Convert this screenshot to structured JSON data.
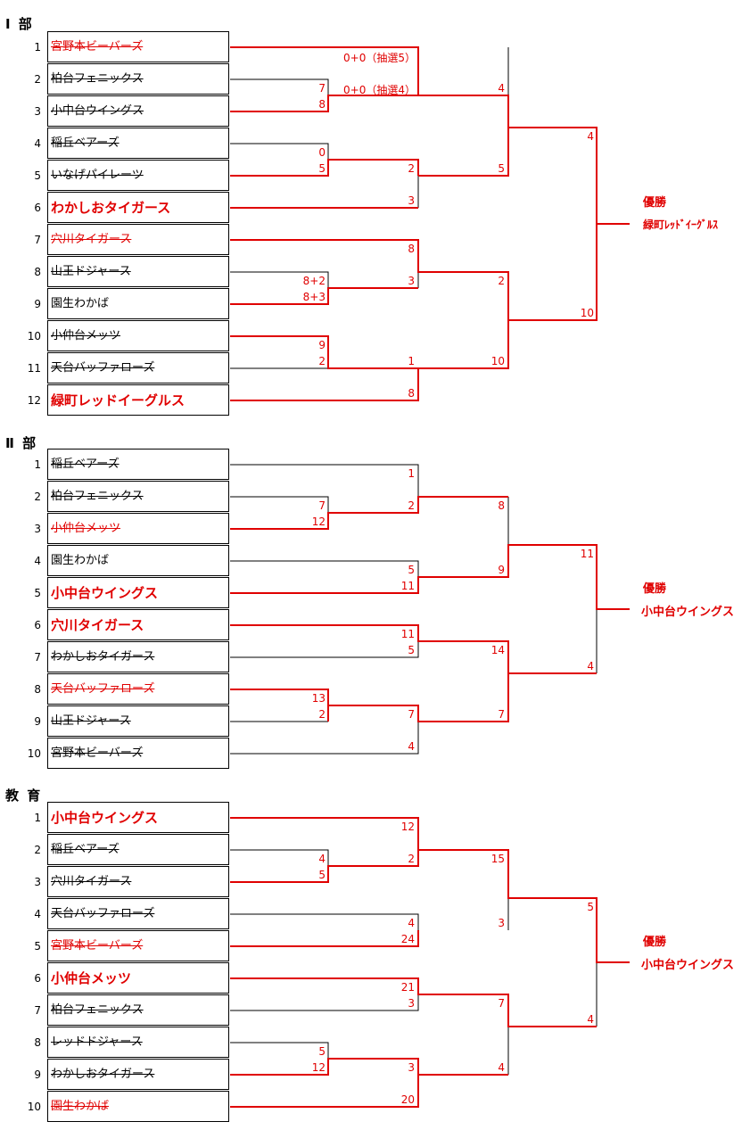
{
  "sections": [
    {
      "title": "Ⅰ 部",
      "teams": [
        {
          "seed": "1",
          "name": "宮野本ビーバーズ",
          "style": "red-lost"
        },
        {
          "seed": "2",
          "name": "柏台フェニックス",
          "style": "lost"
        },
        {
          "seed": "3",
          "name": "小中台ウイングス",
          "style": "lost"
        },
        {
          "seed": "4",
          "name": "稲丘ベアーズ",
          "style": "lost"
        },
        {
          "seed": "5",
          "name": "いなげパイレーツ",
          "style": "lost"
        },
        {
          "seed": "6",
          "name": "わかしおタイガース",
          "style": "win"
        },
        {
          "seed": "7",
          "name": "穴川タイガース",
          "style": "red-lost"
        },
        {
          "seed": "8",
          "name": "山王ドジャース",
          "style": "lost"
        },
        {
          "seed": "9",
          "name": "園生わかば",
          "style": "plain"
        },
        {
          "seed": "10",
          "name": "小仲台メッツ",
          "style": "lost"
        },
        {
          "seed": "11",
          "name": "天台バッファローズ",
          "style": "lost"
        },
        {
          "seed": "12",
          "name": "緑町レッドイーグルス",
          "style": "win"
        }
      ],
      "scores": [
        "0+0（抽選5）",
        "7",
        "0+0（抽選4）",
        "8",
        "4",
        "0",
        "5",
        "2",
        "5",
        "3",
        "4",
        "8",
        "8+2",
        "3",
        "8+3",
        "2",
        "9",
        "2",
        "1",
        "10",
        "10",
        "8"
      ],
      "champion_heading": "優勝",
      "champion": "緑町ﾚｯﾄﾞｲｰｸﾞﾙｽ"
    },
    {
      "title": "Ⅱ 部",
      "teams": [
        {
          "seed": "1",
          "name": "稲丘ベアーズ",
          "style": "lost"
        },
        {
          "seed": "2",
          "name": "柏台フェニックス",
          "style": "lost"
        },
        {
          "seed": "3",
          "name": "小仲台メッツ",
          "style": "red-lost"
        },
        {
          "seed": "4",
          "name": "園生わかば",
          "style": "plain"
        },
        {
          "seed": "5",
          "name": "小中台ウイングス",
          "style": "win"
        },
        {
          "seed": "6",
          "name": "穴川タイガース",
          "style": "win"
        },
        {
          "seed": "7",
          "name": "わかしおタイガース",
          "style": "lost"
        },
        {
          "seed": "8",
          "name": "天台バッファローズ",
          "style": "red-lost"
        },
        {
          "seed": "9",
          "name": "山王ドジャース",
          "style": "lost"
        },
        {
          "seed": "10",
          "name": "宮野本ビーバーズ",
          "style": "lost"
        }
      ],
      "scores": [
        "1",
        "7",
        "2",
        "12",
        "8",
        "5",
        "9",
        "11",
        "11",
        "11",
        "5",
        "14",
        "13",
        "7",
        "2",
        "7",
        "4",
        "4"
      ],
      "champion_heading": "優勝",
      "champion": "小中台ウイングス"
    },
    {
      "title": "教 育",
      "teams": [
        {
          "seed": "1",
          "name": "小中台ウイングス",
          "style": "win"
        },
        {
          "seed": "2",
          "name": "稲丘ベアーズ",
          "style": "lost"
        },
        {
          "seed": "3",
          "name": "穴川タイガース",
          "style": "lost"
        },
        {
          "seed": "4",
          "name": "天台バッファローズ",
          "style": "lost"
        },
        {
          "seed": "5",
          "name": "宮野本ビーバーズ",
          "style": "red-lost"
        },
        {
          "seed": "6",
          "name": "小仲台メッツ",
          "style": "win"
        },
        {
          "seed": "7",
          "name": "柏台フェニックス",
          "style": "lost"
        },
        {
          "seed": "8",
          "name": "レッドドジャース",
          "style": "lost"
        },
        {
          "seed": "9",
          "name": "わかしおタイガース",
          "style": "lost"
        },
        {
          "seed": "10",
          "name": "園生わかば",
          "style": "red-lost"
        }
      ],
      "scores": [
        "12",
        "4",
        "2",
        "5",
        "15",
        "5",
        "4",
        "3",
        "24",
        "21",
        "3",
        "7",
        "5",
        "12",
        "3",
        "4",
        "20",
        "4"
      ],
      "champion_heading": "優勝",
      "champion": "小中台ウイングス"
    }
  ],
  "colors": {
    "win_line": "#e00000",
    "line": "#000000"
  }
}
